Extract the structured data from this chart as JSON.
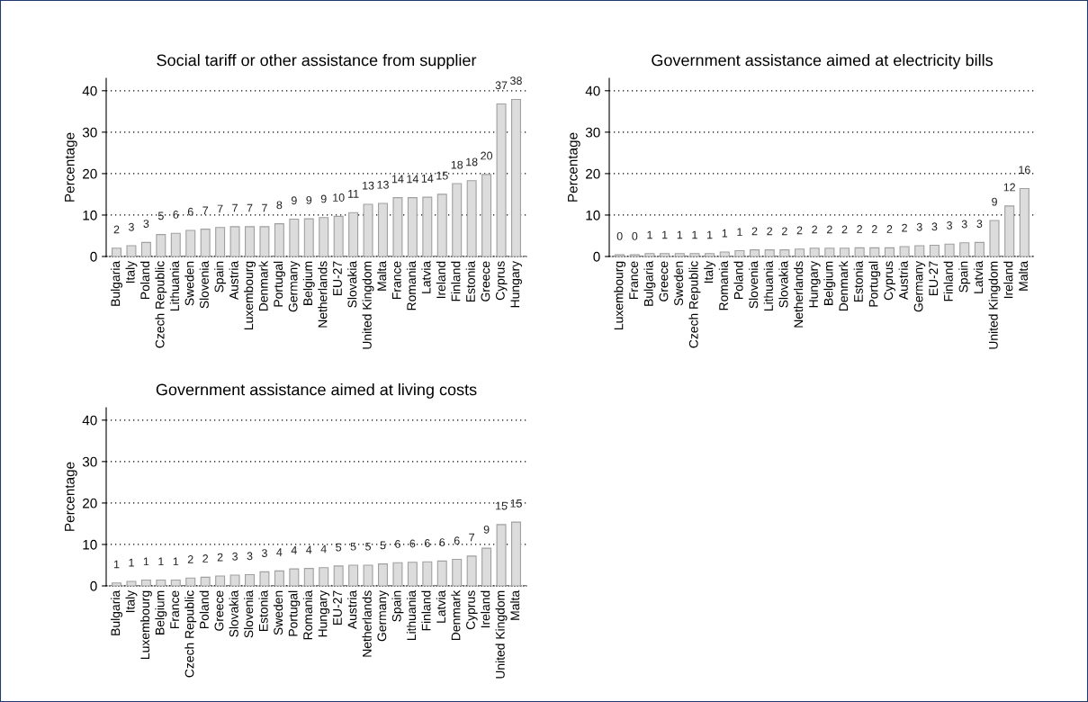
{
  "chart_data": [
    {
      "type": "bar",
      "title": "Social tariff or other assistance from supplier",
      "ylabel": "Percentage",
      "color": "#dcdcdc",
      "ylim": [
        0,
        43
      ],
      "yticks": [
        0,
        10,
        20,
        30,
        40
      ],
      "grid": "y",
      "categories": [
        "Bulgaria",
        "Italy",
        "Poland",
        "Czech Republic",
        "Lithuania",
        "Sweden",
        "Slovenia",
        "Spain",
        "Austria",
        "Luxembourg",
        "Denmark",
        "Portugal",
        "Germany",
        "Belgium",
        "Netherlands",
        "EU-27",
        "Slovakia",
        "United Kingdom",
        "Malta",
        "France",
        "Romania",
        "Latvia",
        "Ireland",
        "Finland",
        "Estonia",
        "Greece",
        "Cyprus",
        "Hungary"
      ],
      "values": [
        2.0,
        2.6,
        3.4,
        5.3,
        5.6,
        6.3,
        6.6,
        7.0,
        7.2,
        7.2,
        7.2,
        7.9,
        9.0,
        9.1,
        9.4,
        9.7,
        10.6,
        12.6,
        12.8,
        14.2,
        14.2,
        14.3,
        15.0,
        17.6,
        18.3,
        19.8,
        36.8,
        37.9
      ],
      "value_labels": [
        "2",
        "3",
        "3",
        "5",
        "6",
        "6",
        "7",
        "7",
        "7",
        "7",
        "7",
        "8",
        "9",
        "9",
        "9",
        "10",
        "11",
        "13",
        "13",
        "14",
        "14",
        "14",
        "15",
        "18",
        "18",
        "20",
        "37",
        "38"
      ]
    },
    {
      "type": "bar",
      "title": "Government assistance aimed at electricity bills",
      "ylabel": "Percentage",
      "color": "#dcdcdc",
      "ylim": [
        0,
        43
      ],
      "yticks": [
        0,
        10,
        20,
        30,
        40
      ],
      "grid": "y",
      "categories": [
        "Luxembourg",
        "France",
        "Bulgaria",
        "Greece",
        "Sweden",
        "Czech Republic",
        "Italy",
        "Romania",
        "Poland",
        "Slovenia",
        "Lithuania",
        "Slovakia",
        "Netherlands",
        "Hungary",
        "Belgium",
        "Denmark",
        "Estonia",
        "Portugal",
        "Cyprus",
        "Austria",
        "Germany",
        "EU-27",
        "Finland",
        "Spain",
        "Latvia",
        "United Kingdom",
        "Ireland",
        "Malta"
      ],
      "values": [
        0.4,
        0.4,
        0.7,
        0.7,
        0.7,
        0.7,
        0.7,
        1.1,
        1.4,
        1.6,
        1.6,
        1.6,
        1.8,
        2.0,
        2.0,
        2.0,
        2.1,
        2.1,
        2.1,
        2.4,
        2.6,
        2.7,
        3.0,
        3.3,
        3.4,
        8.7,
        12.2,
        16.4
      ],
      "value_labels": [
        "0",
        "0",
        "1",
        "1",
        "1",
        "1",
        "1",
        "1",
        "1",
        "2",
        "2",
        "2",
        "2",
        "2",
        "2",
        "2",
        "2",
        "2",
        "2",
        "2",
        "3",
        "3",
        "3",
        "3",
        "3",
        "9",
        "12",
        "16"
      ]
    },
    {
      "type": "bar",
      "title": "Government assistance aimed at living costs",
      "ylabel": "Percentage",
      "color": "#dcdcdc",
      "ylim": [
        0,
        43
      ],
      "yticks": [
        0,
        10,
        20,
        30,
        40
      ],
      "grid": "y",
      "categories": [
        "Bulgaria",
        "Italy",
        "Luxembourg",
        "Belgium",
        "France",
        "Czech Republic",
        "Poland",
        "Greece",
        "Slovakia",
        "Slovenia",
        "Estonia",
        "Sweden",
        "Portugal",
        "Romania",
        "Hungary",
        "EU-27",
        "Austria",
        "Netherlands",
        "Germany",
        "Spain",
        "Lithuania",
        "Finland",
        "Latvia",
        "Denmark",
        "Cyprus",
        "Ireland",
        "United Kingdom",
        "Malta"
      ],
      "values": [
        0.7,
        1.1,
        1.4,
        1.4,
        1.4,
        1.9,
        2.1,
        2.4,
        2.6,
        2.7,
        3.4,
        3.6,
        4.1,
        4.2,
        4.4,
        4.8,
        5.0,
        5.0,
        5.3,
        5.6,
        5.7,
        5.8,
        6.0,
        6.4,
        7.2,
        9.1,
        14.8,
        15.4
      ],
      "value_labels": [
        "1",
        "1",
        "1",
        "1",
        "1",
        "2",
        "2",
        "2",
        "3",
        "3",
        "3",
        "4",
        "4",
        "4",
        "4",
        "5",
        "5",
        "5",
        "5",
        "6",
        "6",
        "6",
        "6",
        "6",
        "7",
        "9",
        "15",
        "15"
      ]
    }
  ]
}
